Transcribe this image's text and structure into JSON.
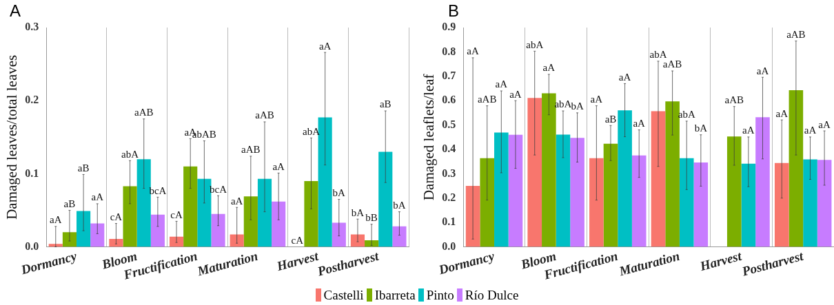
{
  "chart_data": [
    {
      "type": "bar",
      "title": "A",
      "ylabel": "Damaged leaves/total leaves",
      "categories": [
        "Dormancy",
        "Bloom",
        "Fructification",
        "Maturation",
        "Harvest",
        "Postharvest"
      ],
      "ylim": [
        0,
        0.3
      ],
      "yticks": [
        {
          "value": 0,
          "label": "0.0"
        },
        0.1,
        0.2,
        0.3
      ],
      "grid": "x",
      "legend": "bottom",
      "series": [
        {
          "name": "Castelli",
          "color": "#f8766d",
          "values": [
            0.004,
            0.011,
            0.014,
            0.017,
            0,
            0.017
          ],
          "errors": [
            [
              0,
              0.028
            ],
            [
              0.004,
              0.032
            ],
            [
              0.006,
              0.035
            ],
            [
              0.005,
              0.054
            ],
            null,
            [
              0.007,
              0.038
            ]
          ]
        },
        {
          "name": "Ibarreta",
          "color": "#7cae00",
          "values": [
            0.02,
            0.083,
            0.11,
            0.069,
            0.09,
            0.009
          ],
          "errors": [
            [
              0.008,
              0.05
            ],
            [
              0.059,
              0.118
            ],
            [
              0.08,
              0.148
            ],
            [
              0.037,
              0.124
            ],
            [
              0.052,
              0.149
            ],
            [
              0.002,
              0.031
            ]
          ]
        },
        {
          "name": "Pinto",
          "color": "#00bfc4",
          "values": [
            0.049,
            0.12,
            0.093,
            0.093,
            0.177,
            0.13
          ],
          "errors": [
            [
              0.022,
              0.099
            ],
            [
              0.08,
              0.175
            ],
            [
              0.06,
              0.145
            ],
            [
              0.048,
              0.171
            ],
            [
              0.112,
              0.266
            ],
            [
              0.088,
              0.186
            ]
          ]
        },
        {
          "name": "Río Dulce",
          "color": "#c77cff",
          "values": [
            0.032,
            0.044,
            0.045,
            0.062,
            0.033,
            0.028
          ],
          "errors": [
            [
              0.018,
              0.059
            ],
            [
              0.028,
              0.068
            ],
            [
              0.029,
              0.07
            ],
            [
              0.037,
              0.101
            ],
            [
              0.015,
              0.065
            ],
            [
              0.016,
              0.048
            ]
          ]
        }
      ],
      "annotations": [
        "aA",
        "aB",
        "aB",
        "aA",
        "cA",
        "abA",
        "aAB",
        "bcA",
        "cA",
        "aA",
        "abAB",
        "bcA",
        "aA",
        "aAB",
        "aAB",
        "aA",
        "cA",
        "abA",
        "aA",
        "bA",
        "bA",
        "bB",
        "aB",
        "bA"
      ]
    },
    {
      "type": "bar",
      "title": "B",
      "ylabel": "Damaged leaflets/leaf",
      "categories": [
        "Dormancy",
        "Bloom",
        "Fructification",
        "Maturation",
        "Harvest",
        "Postharvest"
      ],
      "ylim": [
        0,
        0.9
      ],
      "yticks": [
        {
          "value": 0,
          "label": "0.0"
        },
        0.1,
        0.2,
        0.3,
        0.4,
        0.5,
        0.6,
        0.7,
        0.8,
        0.9
      ],
      "grid": "x",
      "legend": "bottom",
      "series": [
        {
          "name": "Castelli",
          "color": "#f8766d",
          "values": [
            0.25,
            0.611,
            0.364,
            0.557,
            null,
            0.344
          ],
          "errors": [
            [
              0.032,
              0.776
            ],
            [
              0.377,
              0.803
            ],
            [
              0.192,
              0.579
            ],
            [
              0.33,
              0.762
            ],
            null,
            [
              0.2,
              0.521
            ]
          ]
        },
        {
          "name": "Ibarreta",
          "color": "#7cae00",
          "values": [
            0.364,
            0.63,
            0.423,
            0.597,
            0.453,
            0.643
          ],
          "errors": [
            [
              0.192,
              0.579
            ],
            [
              0.542,
              0.708
            ],
            [
              0.354,
              0.498
            ],
            [
              0.459,
              0.722
            ],
            [
              0.335,
              0.576
            ],
            [
              0.377,
              0.845
            ]
          ]
        },
        {
          "name": "Pinto",
          "color": "#00bfc4",
          "values": [
            0.469,
            0.461,
            0.56,
            0.364,
            0.341,
            0.359
          ],
          "errors": [
            [
              0.304,
              0.64
            ],
            [
              0.366,
              0.558
            ],
            [
              0.452,
              0.67
            ],
            [
              0.235,
              0.516
            ],
            [
              0.247,
              0.451
            ],
            [
              0.277,
              0.451
            ]
          ]
        },
        {
          "name": "Río Dulce",
          "color": "#c77cff",
          "values": [
            0.46,
            0.447,
            0.375,
            0.346,
            0.532,
            0.357
          ],
          "errors": [
            [
              0.322,
              0.6
            ],
            [
              0.348,
              0.55
            ],
            [
              0.285,
              0.48
            ],
            [
              0.249,
              0.46
            ],
            [
              0.361,
              0.696
            ],
            [
              0.253,
              0.476
            ]
          ]
        }
      ],
      "annotations": [
        "aA",
        "aAB",
        "aA",
        "aA",
        "abA",
        "aA",
        "abA",
        "bA",
        "aA",
        "aB",
        "aA",
        "aA",
        "abA",
        "aAB",
        "abA",
        "bA",
        "aAB",
        "aA",
        "aA",
        "aA",
        "aAB",
        "aA",
        "aA"
      ]
    }
  ]
}
